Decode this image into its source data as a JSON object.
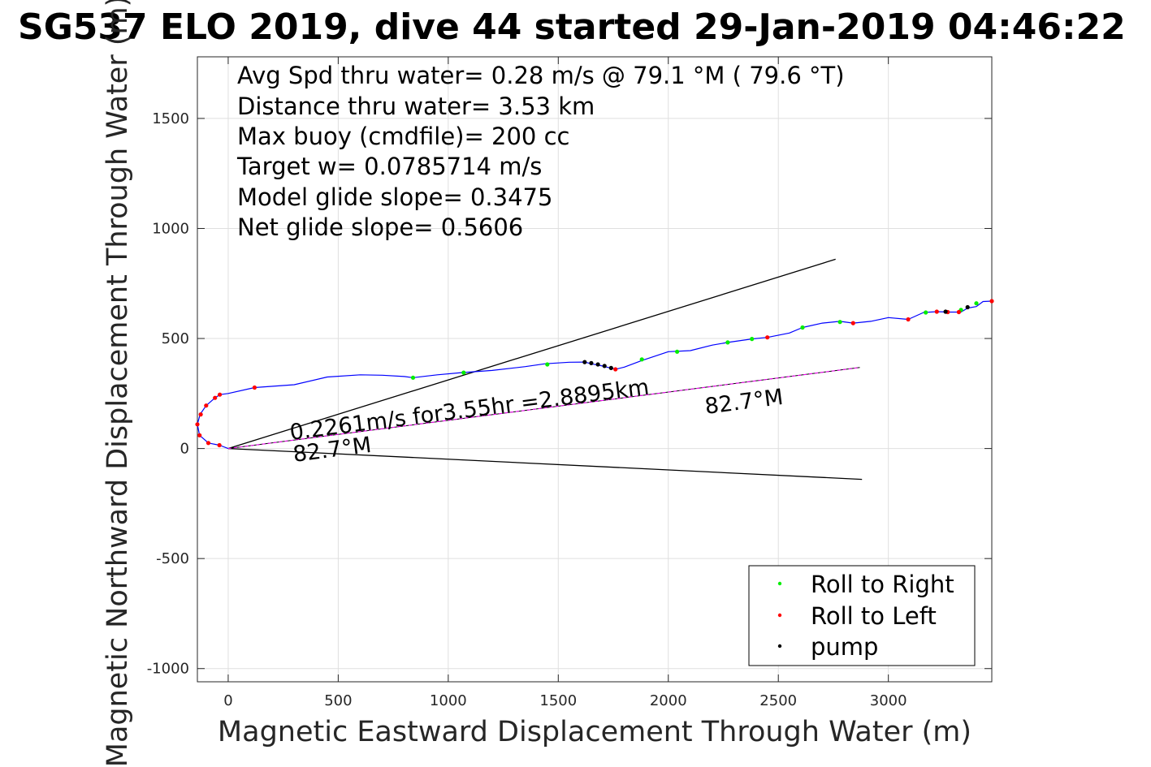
{
  "chart_data": {
    "type": "line",
    "title": "SG537 ELO 2019, dive 44 started 29-Jan-2019 04:46:22",
    "xlabel": "Magnetic Eastward Displacement Through Water (m)",
    "ylabel": "Magnetic Northward Displacement Through Water (m)",
    "xlim": [
      -140,
      3470
    ],
    "ylim": [
      -1060,
      1780
    ],
    "x_ticks": [
      0,
      500,
      1000,
      1500,
      2000,
      2500,
      3000
    ],
    "x_tick_labels": [
      "0",
      "500",
      "1000",
      "1500",
      "2000",
      "2500",
      "3000"
    ],
    "y_ticks": [
      -1000,
      -500,
      0,
      500,
      1000,
      1500
    ],
    "y_tick_labels": [
      "-1000",
      "-500",
      "0",
      "500",
      "1000",
      "1500"
    ],
    "grid": true,
    "legend_position": "bottom-right",
    "stats": [
      "Avg Spd thru water=  0.28 m/s @  79.1 °M ( 79.6 °T)",
      "Distance thru water=  3.53 km",
      "Max buoy (cmdfile)= 200 cc",
      "Target w= 0.0785714 m/s",
      "Model glide slope= 0.3475",
      "Net glide slope= 0.5606"
    ],
    "annotations": {
      "speed_label": "0.2261m/s for3.55hr =2.8895km",
      "heading_label_near": "82.7°M",
      "heading_label_far": "82.7°M"
    },
    "track": {
      "color": "#0000ff",
      "x": [
        0,
        -40,
        -90,
        -130,
        -140,
        -128,
        -100,
        -60,
        -38,
        0,
        120,
        300,
        450,
        600,
        700,
        800,
        840,
        950,
        1060,
        1200,
        1350,
        1440,
        1550,
        1620,
        1650,
        1700,
        1745,
        1760,
        1800,
        1880,
        2000,
        2100,
        2200,
        2270,
        2380,
        2450,
        2550,
        2610,
        2700,
        2780,
        2840,
        2920,
        3000,
        3090,
        3160,
        3220,
        3280,
        3330,
        3360,
        3400,
        3430,
        3470
      ],
      "y": [
        0,
        15,
        25,
        60,
        110,
        155,
        195,
        230,
        245,
        250,
        277,
        290,
        325,
        335,
        333,
        327,
        322,
        335,
        345,
        355,
        372,
        385,
        392,
        393,
        385,
        375,
        364,
        360,
        370,
        400,
        440,
        445,
        470,
        482,
        498,
        505,
        525,
        550,
        570,
        578,
        570,
        578,
        595,
        587,
        618,
        622,
        620,
        620,
        638,
        645,
        668,
        670
      ]
    },
    "cone_lines": {
      "color": "#000000",
      "upper": {
        "x": [
          0,
          2760
        ],
        "y": [
          0,
          860
        ]
      },
      "lower": {
        "x": [
          0,
          2880
        ],
        "y": [
          0,
          -140
        ]
      }
    },
    "net_track": {
      "color": "#ff00ff",
      "x": [
        0,
        2870
      ],
      "y": [
        0,
        368
      ]
    },
    "series": [
      {
        "name": "Roll to Right",
        "color": "#00ee00",
        "x": [
          840,
          1070,
          1450,
          1880,
          2040,
          2270,
          2380,
          2610,
          2780,
          3170,
          3330,
          3400
        ],
        "y": [
          322,
          345,
          382,
          405,
          440,
          482,
          498,
          550,
          575,
          618,
          630,
          660
        ]
      },
      {
        "name": "Roll to Left",
        "color": "#ff0000",
        "x": [
          -40,
          -90,
          -130,
          -140,
          -125,
          -100,
          -60,
          -38,
          120,
          1760,
          2450,
          2840,
          3090,
          3220,
          3270,
          3320,
          3470
        ],
        "y": [
          15,
          25,
          60,
          110,
          155,
          195,
          230,
          245,
          277,
          360,
          505,
          570,
          587,
          622,
          620,
          620,
          670
        ]
      },
      {
        "name": "pump",
        "color": "#000000",
        "x": [
          1620,
          1650,
          1680,
          1710,
          1740,
          3260,
          3360
        ],
        "y": [
          393,
          388,
          382,
          375,
          366,
          622,
          642
        ]
      }
    ]
  }
}
